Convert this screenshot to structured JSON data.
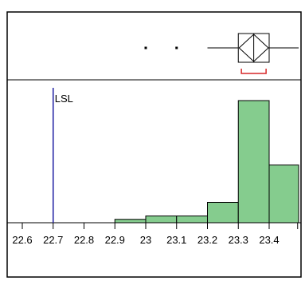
{
  "chart_data": {
    "type": "bar",
    "xlim": [
      22.55,
      23.5
    ],
    "x_ticks": [
      "22.6",
      "22.7",
      "22.8",
      "22.9",
      "23",
      "23.1",
      "23.2",
      "23.3",
      "23.4"
    ],
    "x_tick_values": [
      22.6,
      22.7,
      22.8,
      22.9,
      23.0,
      23.1,
      23.2,
      23.3,
      23.4
    ],
    "bins": [
      {
        "from": 22.9,
        "to": 23.0,
        "count": 1
      },
      {
        "from": 23.0,
        "to": 23.1,
        "count": 2
      },
      {
        "from": 23.1,
        "to": 23.2,
        "count": 2
      },
      {
        "from": 23.2,
        "to": 23.3,
        "count": 6
      },
      {
        "from": 23.3,
        "to": 23.4,
        "count": 36
      },
      {
        "from": 23.4,
        "to": 23.5,
        "count": 17
      }
    ],
    "ylim": [
      0,
      40
    ],
    "spec_limit": {
      "label": "LSL",
      "value": 22.7,
      "color": "#1f1fa3"
    },
    "box_plot": {
      "whisker_low": 23.2,
      "q1": 23.3,
      "median": 23.35,
      "q3": 23.4,
      "whisker_high": 23.5,
      "outliers": [
        23.0,
        23.1
      ],
      "shortest_half": [
        23.31,
        23.39
      ]
    },
    "bar_color": "#85cc8e",
    "shortest_half_color": "#d62728",
    "grid": false
  }
}
